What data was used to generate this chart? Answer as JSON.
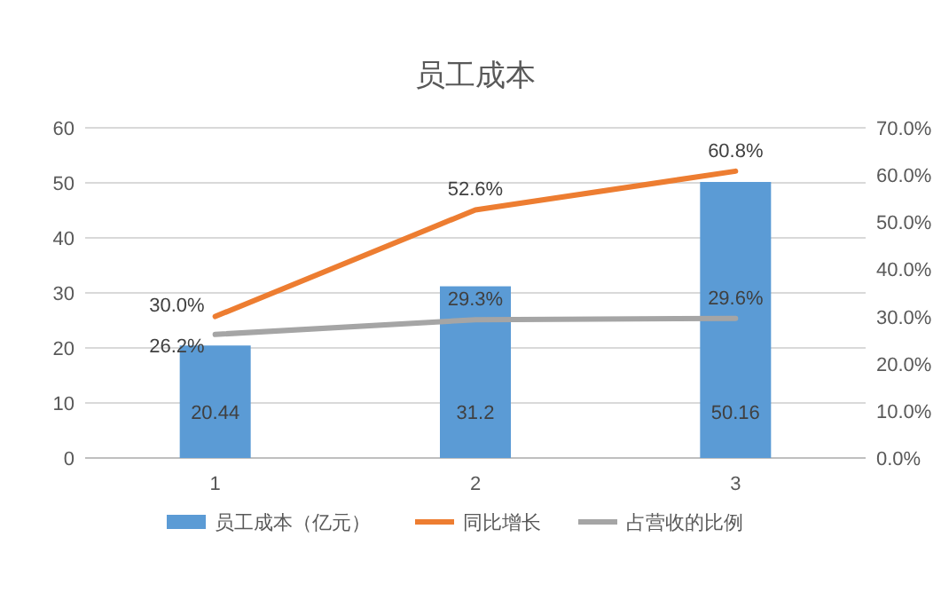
{
  "chart_data": {
    "type": "bar",
    "title": "员工成本",
    "categories": [
      "1",
      "2",
      "3"
    ],
    "series": [
      {
        "name": "员工成本（亿元）",
        "color": "#5b9bd5",
        "values": [
          20.44,
          31.2,
          50.16
        ],
        "value_labels": [
          "20.44",
          "31.2",
          "50.16"
        ]
      },
      {
        "name": "同比增长",
        "type": "line",
        "axis": "y2",
        "color": "#ed7d31",
        "values": [
          30.0,
          52.6,
          60.8
        ],
        "value_labels": [
          "30.0%",
          "52.6%",
          "60.8%"
        ]
      },
      {
        "name": "占营收的比例",
        "type": "line",
        "axis": "y2",
        "color": "#a5a5a5",
        "values": [
          26.2,
          29.3,
          29.6
        ],
        "value_labels": [
          "26.2%",
          "29.3%",
          "29.6%"
        ]
      }
    ],
    "ylim": [
      0,
      60
    ],
    "yticks": [
      0,
      10,
      20,
      30,
      40,
      50,
      60
    ],
    "y2lim": [
      0,
      70
    ],
    "y2ticks": [
      {
        "value": 0,
        "label": "0.0%"
      },
      {
        "value": 10,
        "label": "10.0%"
      },
      {
        "value": 20,
        "label": "20.0%"
      },
      {
        "value": 30,
        "label": "30.0%"
      },
      {
        "value": 40,
        "label": "40.0%"
      },
      {
        "value": 50,
        "label": "50.0%"
      },
      {
        "value": 60,
        "label": "60.0%"
      },
      {
        "value": 70,
        "label": "70.0%"
      }
    ],
    "grid": "y",
    "legend": "bottom",
    "marker": "none",
    "line_style": "solid"
  }
}
